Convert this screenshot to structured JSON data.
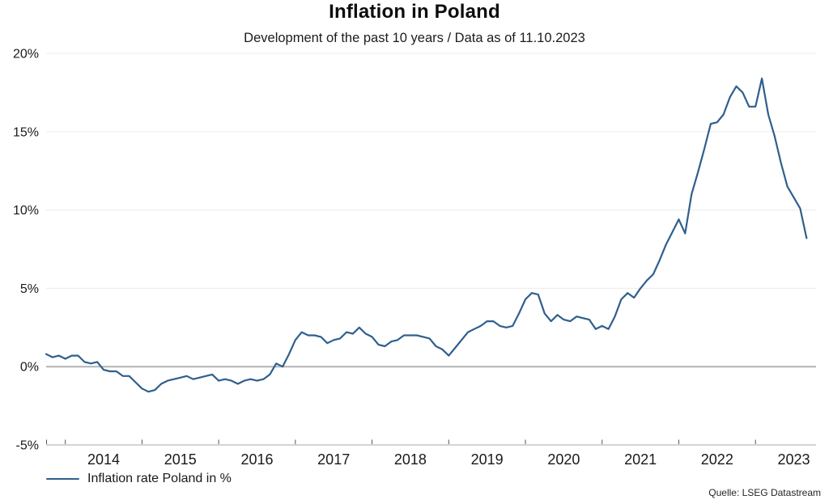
{
  "header": {
    "title": "Inflation in Poland",
    "subtitle": "Development of the past 10 years / Data as of 11.10.2023"
  },
  "legend": {
    "label": "Inflation rate Poland in %"
  },
  "source": "Quelle: LSEG Datastream",
  "colors": {
    "line": "#2f5f8d",
    "grid": "#ececec",
    "zero_line": "#b3b3b3",
    "axis_line": "#c6c6c6",
    "tick": "#555555",
    "label_text": "#1a1a1a"
  },
  "chart_data": {
    "type": "line",
    "title": "Inflation in Poland",
    "subtitle": "Development of the past 10 years / Data as of 11.10.2023",
    "xlabel": "",
    "ylabel": "",
    "ylim": [
      -5,
      20
    ],
    "y_tick_step": 5,
    "y_tick_labels": [
      "-5%",
      "0%",
      "5%",
      "10%",
      "15%",
      "20%"
    ],
    "x_tick_years": [
      2014,
      2015,
      2016,
      2017,
      2018,
      2019,
      2020,
      2021,
      2022,
      2023
    ],
    "x_tick_labels": [
      "2014",
      "2015",
      "2016",
      "2017",
      "2018",
      "2019",
      "2020",
      "2021",
      "2022",
      "2023"
    ],
    "xlim_years": [
      2013.75,
      2023.79
    ],
    "grid": "horizontal",
    "zero_line": true,
    "legend_position": "bottom-left",
    "series": [
      {
        "name": "Inflation rate Poland in %",
        "months": [
          "2013-10",
          "2013-11",
          "2013-12",
          "2014-01",
          "2014-02",
          "2014-03",
          "2014-04",
          "2014-05",
          "2014-06",
          "2014-07",
          "2014-08",
          "2014-09",
          "2014-10",
          "2014-11",
          "2014-12",
          "2015-01",
          "2015-02",
          "2015-03",
          "2015-04",
          "2015-05",
          "2015-06",
          "2015-07",
          "2015-08",
          "2015-09",
          "2015-10",
          "2015-11",
          "2015-12",
          "2016-01",
          "2016-02",
          "2016-03",
          "2016-04",
          "2016-05",
          "2016-06",
          "2016-07",
          "2016-08",
          "2016-09",
          "2016-10",
          "2016-11",
          "2016-12",
          "2017-01",
          "2017-02",
          "2017-03",
          "2017-04",
          "2017-05",
          "2017-06",
          "2017-07",
          "2017-08",
          "2017-09",
          "2017-10",
          "2017-11",
          "2017-12",
          "2018-01",
          "2018-02",
          "2018-03",
          "2018-04",
          "2018-05",
          "2018-06",
          "2018-07",
          "2018-08",
          "2018-09",
          "2018-10",
          "2018-11",
          "2018-12",
          "2019-01",
          "2019-02",
          "2019-03",
          "2019-04",
          "2019-05",
          "2019-06",
          "2019-07",
          "2019-08",
          "2019-09",
          "2019-10",
          "2019-11",
          "2019-12",
          "2020-01",
          "2020-02",
          "2020-03",
          "2020-04",
          "2020-05",
          "2020-06",
          "2020-07",
          "2020-08",
          "2020-09",
          "2020-10",
          "2020-11",
          "2020-12",
          "2021-01",
          "2021-02",
          "2021-03",
          "2021-04",
          "2021-05",
          "2021-06",
          "2021-07",
          "2021-08",
          "2021-09",
          "2021-10",
          "2021-11",
          "2021-12",
          "2022-01",
          "2022-02",
          "2022-03",
          "2022-04",
          "2022-05",
          "2022-06",
          "2022-07",
          "2022-08",
          "2022-09",
          "2022-10",
          "2022-11",
          "2022-12",
          "2023-01",
          "2023-02",
          "2023-03",
          "2023-04",
          "2023-05",
          "2023-06",
          "2023-07",
          "2023-08",
          "2023-09"
        ],
        "values": [
          0.8,
          0.6,
          0.7,
          0.5,
          0.7,
          0.7,
          0.3,
          0.2,
          0.3,
          -0.2,
          -0.3,
          -0.3,
          -0.6,
          -0.6,
          -1.0,
          -1.4,
          -1.6,
          -1.5,
          -1.1,
          -0.9,
          -0.8,
          -0.7,
          -0.6,
          -0.8,
          -0.7,
          -0.6,
          -0.5,
          -0.9,
          -0.8,
          -0.9,
          -1.1,
          -0.9,
          -0.8,
          -0.9,
          -0.8,
          -0.5,
          0.2,
          0.0,
          0.8,
          1.7,
          2.2,
          2.0,
          2.0,
          1.9,
          1.5,
          1.7,
          1.8,
          2.2,
          2.1,
          2.5,
          2.1,
          1.9,
          1.4,
          1.3,
          1.6,
          1.7,
          2.0,
          2.0,
          2.0,
          1.9,
          1.8,
          1.3,
          1.1,
          0.7,
          1.2,
          1.7,
          2.2,
          2.4,
          2.6,
          2.9,
          2.9,
          2.6,
          2.5,
          2.6,
          3.4,
          4.3,
          4.7,
          4.6,
          3.4,
          2.9,
          3.3,
          3.0,
          2.9,
          3.2,
          3.1,
          3.0,
          2.4,
          2.6,
          2.4,
          3.2,
          4.3,
          4.7,
          4.4,
          5.0,
          5.5,
          5.9,
          6.8,
          7.8,
          8.6,
          9.4,
          8.5,
          11.0,
          12.4,
          13.9,
          15.5,
          15.6,
          16.1,
          17.2,
          17.9,
          17.5,
          16.6,
          16.6,
          18.4,
          16.1,
          14.7,
          13.0,
          11.5,
          10.8,
          10.1,
          8.2
        ]
      }
    ]
  }
}
